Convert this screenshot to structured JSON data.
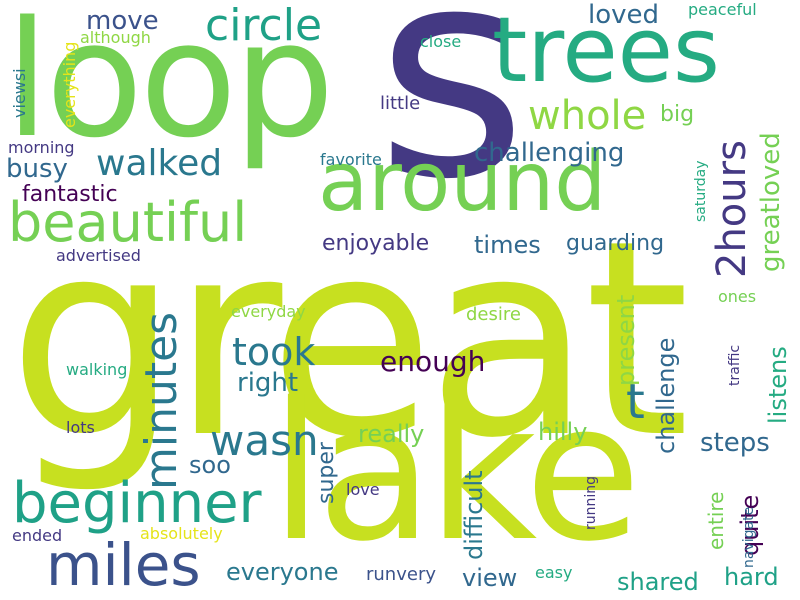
{
  "wordcloud": {
    "colors": {
      "lime": "#c7e020",
      "green": "#75d054",
      "lightgreen": "#8fd744",
      "teal": "#25ab82",
      "sea": "#1fa187",
      "blue": "#2a788e",
      "steel": "#31688e",
      "indigo": "#3b528b",
      "navy": "#443983",
      "dark": "#440154",
      "yellow": "#e5e419"
    },
    "words": {
      "s": "s",
      "great": "great",
      "loop": "loop",
      "lake": "lake",
      "trees": "trees",
      "around": "around",
      "beautiful": "beautiful",
      "beginner": "beginner",
      "miles": "miles",
      "circle": "circle",
      "walked": "walked",
      "whole": "whole",
      "took": "took",
      "wasn": "wasn",
      "minutes": "minutes",
      "2hours": "2hours",
      "greatloved": "greatloved",
      "challenging": "challenging",
      "move": "move",
      "loved": "loved",
      "busy": "busy",
      "fantastic": "fantastic",
      "enjoyable": "enjoyable",
      "times": "times",
      "guarding": "guarding",
      "enough": "enough",
      "right": "right",
      "t": "t",
      "present": "present",
      "challenge": "challenge",
      "listens": "listens",
      "quite": "quite",
      "steps": "steps",
      "really": "really",
      "hilly": "hilly",
      "difficult": "difficult",
      "super": "super",
      "soo": "soo",
      "everyone": "everyone",
      "view": "view",
      "shared": "shared",
      "hard": "hard",
      "entire": "entire",
      "navigate": "navigate",
      "peaceful": "peaceful",
      "although": "although",
      "everything": "everything",
      "viewsi": "viewsi",
      "close": "close",
      "little": "little",
      "big": "big",
      "morning": "morning",
      "favorite": "favorite",
      "saturday": "saturday",
      "advertised": "advertised",
      "everyday": "everyday",
      "ones": "ones",
      "desire": "desire",
      "traffic": "traffic",
      "walking": "walking",
      "lots": "lots",
      "love": "love",
      "running": "running",
      "ended": "ended",
      "absolutely": "absolutely",
      "runvery": "runvery",
      "easy": "easy"
    }
  }
}
